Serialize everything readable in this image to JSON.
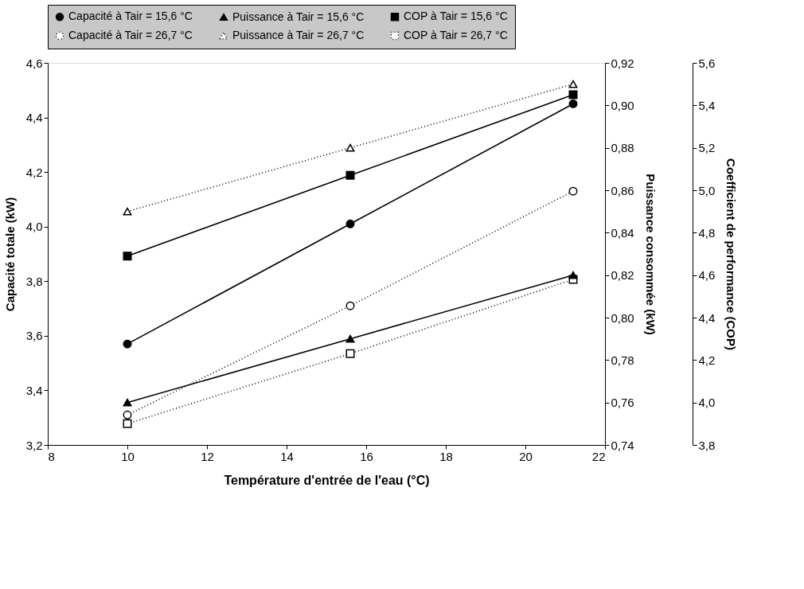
{
  "chart_data": {
    "type": "line",
    "xlabel": "Température d'entrée de l'eau (°C)",
    "ylabel": "Capacité totale (kW)",
    "y2label": "Puissance consommée (kW)",
    "y3label": "Coefficient de performance (COP)",
    "x": [
      10,
      15.6,
      21.2
    ],
    "xlim": [
      8,
      22
    ],
    "xticks": [
      8,
      10,
      12,
      14,
      16,
      18,
      20,
      22
    ],
    "ylim": [
      3.2,
      4.6
    ],
    "yticks": [
      {
        "value": 3.2,
        "label": "3,2"
      },
      {
        "value": 3.4,
        "label": "3,4"
      },
      {
        "value": 3.6,
        "label": "3,6"
      },
      {
        "value": 3.8,
        "label": "3,8"
      },
      {
        "value": 4.0,
        "label": "4,0"
      },
      {
        "value": 4.2,
        "label": "4,2"
      },
      {
        "value": 4.4,
        "label": "4,4"
      },
      {
        "value": 4.6,
        "label": "4,6"
      }
    ],
    "y2lim": [
      0.74,
      0.92
    ],
    "y2ticks": [
      {
        "value": 0.74,
        "label": "0,74"
      },
      {
        "value": 0.76,
        "label": "0,76"
      },
      {
        "value": 0.78,
        "label": "0,78"
      },
      {
        "value": 0.8,
        "label": "0,80"
      },
      {
        "value": 0.82,
        "label": "0,82"
      },
      {
        "value": 0.84,
        "label": "0,84"
      },
      {
        "value": 0.86,
        "label": "0,86"
      },
      {
        "value": 0.88,
        "label": "0,88"
      },
      {
        "value": 0.9,
        "label": "0,90"
      },
      {
        "value": 0.92,
        "label": "0,92"
      }
    ],
    "y3lim": [
      3.8,
      5.6
    ],
    "y3ticks": [
      {
        "value": 3.8,
        "label": "3,8"
      },
      {
        "value": 4.0,
        "label": "4,0"
      },
      {
        "value": 4.2,
        "label": "4,2"
      },
      {
        "value": 4.4,
        "label": "4,4"
      },
      {
        "value": 4.6,
        "label": "4,6"
      },
      {
        "value": 4.8,
        "label": "4,8"
      },
      {
        "value": 5.0,
        "label": "5,0"
      },
      {
        "value": 5.2,
        "label": "5,2"
      },
      {
        "value": 5.4,
        "label": "5,4"
      },
      {
        "value": 5.6,
        "label": "5,6"
      }
    ],
    "legend": "top",
    "grid": false,
    "series": [
      {
        "name": "Capacité à Tair = 15,6 °C",
        "color": "#000000",
        "axis": "y",
        "marker": "circle",
        "line_style": "solid",
        "values": [
          3.57,
          4.01,
          4.45
        ]
      },
      {
        "name": "Puissance à Tair = 15,6 °C",
        "color": "#000000",
        "axis": "y2",
        "marker": "triangle",
        "line_style": "solid",
        "values": [
          0.76,
          0.79,
          0.82
        ]
      },
      {
        "name": "COP à Tair = 15,6 °C",
        "color": "#000000",
        "axis": "y3",
        "marker": "square",
        "line_style": "solid",
        "values": [
          4.69,
          5.07,
          5.45
        ]
      },
      {
        "name": "Capacité à Tair = 26,7 °C",
        "color": "#000000",
        "axis": "y",
        "marker": "circle",
        "line_style": "dotted",
        "values": [
          3.31,
          3.71,
          4.13
        ]
      },
      {
        "name": "Puissance à Tair = 26,7 °C",
        "color": "#000000",
        "axis": "y2",
        "marker": "triangle",
        "line_style": "dotted",
        "values": [
          0.85,
          0.88,
          0.91
        ]
      },
      {
        "name": "COP à Tair = 26,7 °C",
        "color": "#000000",
        "axis": "y3",
        "marker": "square",
        "line_style": "dotted",
        "values": [
          3.9,
          4.23,
          4.58
        ]
      }
    ]
  }
}
